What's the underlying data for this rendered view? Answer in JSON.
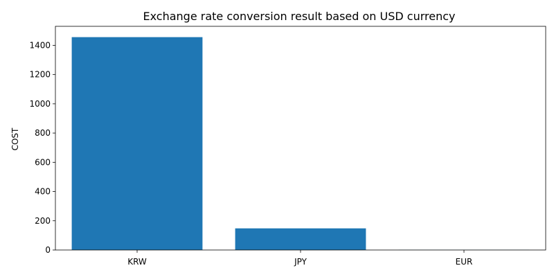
{
  "chart_data": {
    "type": "bar",
    "title": "Exchange rate conversion result based on USD currency",
    "xlabel": "",
    "ylabel": "COST",
    "categories": [
      "KRW",
      "JPY",
      "EUR"
    ],
    "values": [
      1456,
      148,
      0.92
    ],
    "ylim": [
      0,
      1530
    ],
    "yticks": [
      0,
      200,
      400,
      600,
      800,
      1000,
      1200,
      1400
    ],
    "grid": false,
    "bar_color": "#1f77b4"
  }
}
